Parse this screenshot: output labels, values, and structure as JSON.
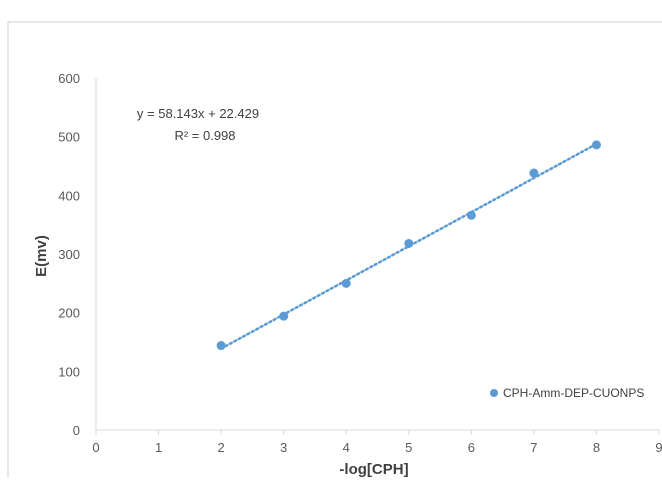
{
  "chart_data": {
    "type": "scatter",
    "title": "",
    "xlabel": "-log[CPH]",
    "ylabel": "E(mv)",
    "xlim": [
      0,
      9
    ],
    "ylim": [
      0,
      600
    ],
    "x_ticks": [
      "0",
      "1",
      "2",
      "3",
      "4",
      "5",
      "6",
      "7",
      "8",
      "9"
    ],
    "y_ticks": [
      "0",
      "100",
      "200",
      "300",
      "400",
      "500",
      "600"
    ],
    "grid": false,
    "legend_position": "bottom-right",
    "series": [
      {
        "name": "CPH-Amm-DEP-CUONPS",
        "color": "#5b9bd5",
        "marker": "circle",
        "x": [
          2,
          3,
          4,
          5,
          6,
          7,
          8
        ],
        "y": [
          144,
          194,
          250,
          318,
          366,
          438,
          486
        ]
      }
    ],
    "trendline": {
      "type": "linear",
      "style": "dotted",
      "color": "#5b9bd5",
      "slope": 58.143,
      "intercept": 22.429,
      "x_range": [
        2,
        8
      ],
      "equation_label": "y = 58.143x + 22.429",
      "r2_label": "R² = 0.998"
    }
  }
}
